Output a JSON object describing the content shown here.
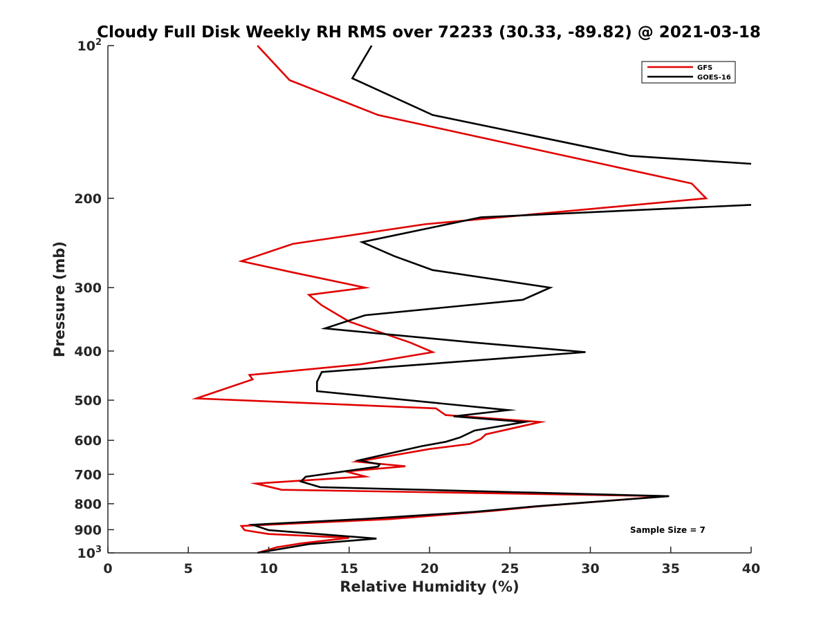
{
  "chart_data": {
    "type": "line",
    "title": "Cloudy Full Disk Weekly RH RMS over 72233 (30.33, -89.82) @ 2021-03-18",
    "xlabel": "Relative Humidity (%)",
    "ylabel": "Pressure (mb)",
    "x_scale": "linear",
    "y_scale": "log",
    "y_reversed": true,
    "xlim": [
      0,
      40
    ],
    "ylim": [
      100,
      1000
    ],
    "x_ticks": [
      {
        "value": 0,
        "label": "0"
      },
      {
        "value": 5,
        "label": "5"
      },
      {
        "value": 10,
        "label": "10"
      },
      {
        "value": 15,
        "label": "15"
      },
      {
        "value": 20,
        "label": "20"
      },
      {
        "value": 25,
        "label": "25"
      },
      {
        "value": 30,
        "label": "30"
      },
      {
        "value": 35,
        "label": "35"
      },
      {
        "value": 40,
        "label": "40"
      }
    ],
    "y_ticks": [
      {
        "value": 100,
        "base": "10",
        "exp": "2"
      },
      {
        "value": 200,
        "label": "200"
      },
      {
        "value": 300,
        "label": "300"
      },
      {
        "value": 400,
        "label": "400"
      },
      {
        "value": 500,
        "label": "500"
      },
      {
        "value": 600,
        "label": "600"
      },
      {
        "value": 700,
        "label": "700"
      },
      {
        "value": 800,
        "label": "800"
      },
      {
        "value": 900,
        "label": "900"
      },
      {
        "value": 1000,
        "base": "10",
        "exp": "3"
      }
    ],
    "grid": false,
    "legend": {
      "position": "top-right"
    },
    "annotation": "Sample Size = 7",
    "series": [
      {
        "name": "GFS",
        "color": "#e00000",
        "points": [
          [
            9.3,
            100
          ],
          [
            11.3,
            117
          ],
          [
            16.8,
            137
          ],
          [
            36.3,
            187
          ],
          [
            37.2,
            200
          ],
          [
            19.7,
            225
          ],
          [
            11.5,
            246
          ],
          [
            8.3,
            266
          ],
          [
            11.5,
            280
          ],
          [
            16.0,
            300
          ],
          [
            12.5,
            310
          ],
          [
            13.3,
            325
          ],
          [
            15.0,
            350
          ],
          [
            18.8,
            385
          ],
          [
            20.2,
            402
          ],
          [
            15.7,
            425
          ],
          [
            8.8,
            446
          ],
          [
            9.0,
            455
          ],
          [
            5.5,
            496
          ],
          [
            20.4,
            519
          ],
          [
            21.0,
            535
          ],
          [
            26.9,
            552
          ],
          [
            23.5,
            584
          ],
          [
            23.2,
            596
          ],
          [
            22.5,
            610
          ],
          [
            20.0,
            624
          ],
          [
            15.5,
            661
          ],
          [
            18.5,
            675
          ],
          [
            14.8,
            691
          ],
          [
            16.0,
            707
          ],
          [
            9.2,
            730
          ],
          [
            10.8,
            751
          ],
          [
            34.7,
            773
          ],
          [
            26.7,
            810
          ],
          [
            24.0,
            826
          ],
          [
            17.5,
            858
          ],
          [
            8.3,
            885
          ],
          [
            8.5,
            902
          ],
          [
            10.0,
            918
          ],
          [
            15.0,
            934
          ],
          [
            12.0,
            958
          ],
          [
            10.5,
            975
          ],
          [
            9.3,
            1000
          ]
        ]
      },
      {
        "name": "GOES-16",
        "color": "#000000",
        "points": [
          [
            16.4,
            100
          ],
          [
            15.2,
            116
          ],
          [
            20.2,
            137
          ],
          [
            32.5,
            165
          ],
          [
            40.0,
            171
          ],
          [
            null,
            null
          ],
          [
            40.0,
            206
          ],
          [
            23.2,
            218
          ],
          [
            15.8,
            244
          ],
          [
            17.8,
            260
          ],
          [
            20.2,
            277
          ],
          [
            27.5,
            300
          ],
          [
            25.8,
            317
          ],
          [
            16.0,
            340
          ],
          [
            13.5,
            361
          ],
          [
            22.8,
            385
          ],
          [
            29.7,
            402
          ],
          [
            13.3,
            440
          ],
          [
            13.0,
            460
          ],
          [
            13.0,
            480
          ],
          [
            24.9,
            523
          ],
          [
            21.5,
            538
          ],
          [
            25.9,
            552
          ],
          [
            22.8,
            574
          ],
          [
            21.9,
            592
          ],
          [
            21.0,
            604
          ],
          [
            19.5,
            616
          ],
          [
            15.6,
            657
          ],
          [
            16.9,
            669
          ],
          [
            16.8,
            676
          ],
          [
            12.3,
            708
          ],
          [
            12.0,
            723
          ],
          [
            13.2,
            742
          ],
          [
            34.9,
            773
          ],
          [
            26.5,
            810
          ],
          [
            22.8,
            830
          ],
          [
            16.0,
            857
          ],
          [
            9.0,
            880
          ],
          [
            10.0,
            902
          ],
          [
            16.7,
            937
          ],
          [
            12.5,
            961
          ],
          [
            11.0,
            979
          ],
          [
            9.3,
            1000
          ]
        ]
      }
    ]
  }
}
